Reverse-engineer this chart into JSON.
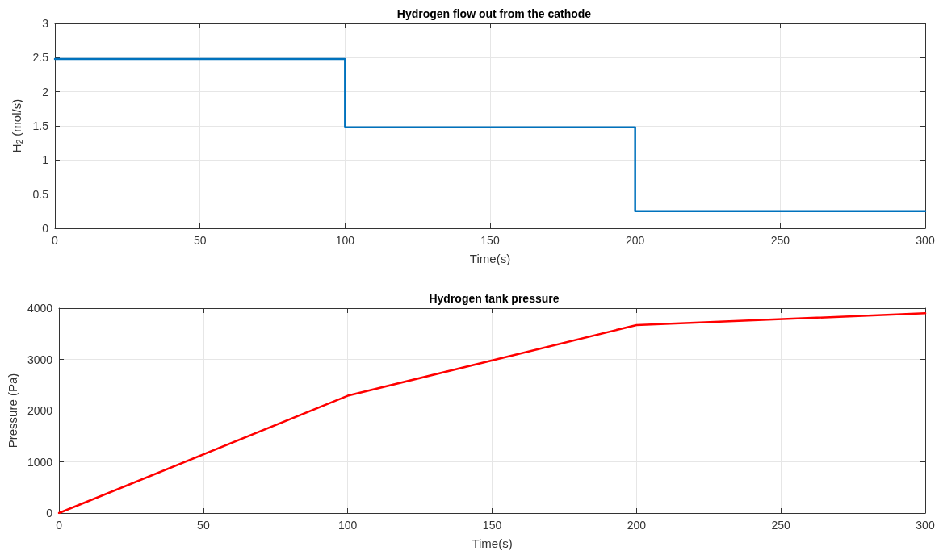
{
  "chart_data": [
    {
      "type": "step",
      "title": "Hydrogen flow out from the cathode",
      "xlabel": "Time(s)",
      "ylabel": "H$_{2}$ (mol/s)",
      "x": [
        0,
        100,
        200,
        300
      ],
      "series": [
        {
          "color": "#0072bd",
          "values": [
            2.48,
            1.48,
            0.25,
            0.25
          ]
        }
      ],
      "xlim": [
        0,
        300
      ],
      "xticks": [
        0,
        50,
        100,
        150,
        200,
        250,
        300
      ],
      "ylim": [
        0,
        3
      ],
      "yticks": [
        0,
        0.5,
        1,
        1.5,
        2,
        2.5,
        3
      ],
      "grid": true,
      "marker": "none",
      "line_style": "solid"
    },
    {
      "type": "line",
      "title": "Hydrogen tank pressure",
      "xlabel": "Time(s)",
      "ylabel": "Pressure (Pa)",
      "x": [
        0,
        100,
        200,
        300
      ],
      "series": [
        {
          "color": "#ff0000",
          "values": [
            0,
            2290,
            3670,
            3900
          ]
        }
      ],
      "xlim": [
        0,
        300
      ],
      "xticks": [
        0,
        50,
        100,
        150,
        200,
        250,
        300
      ],
      "ylim": [
        0,
        4000
      ],
      "yticks": [
        0,
        1000,
        2000,
        3000,
        4000
      ],
      "grid": true,
      "marker": "none",
      "line_style": "solid"
    }
  ]
}
